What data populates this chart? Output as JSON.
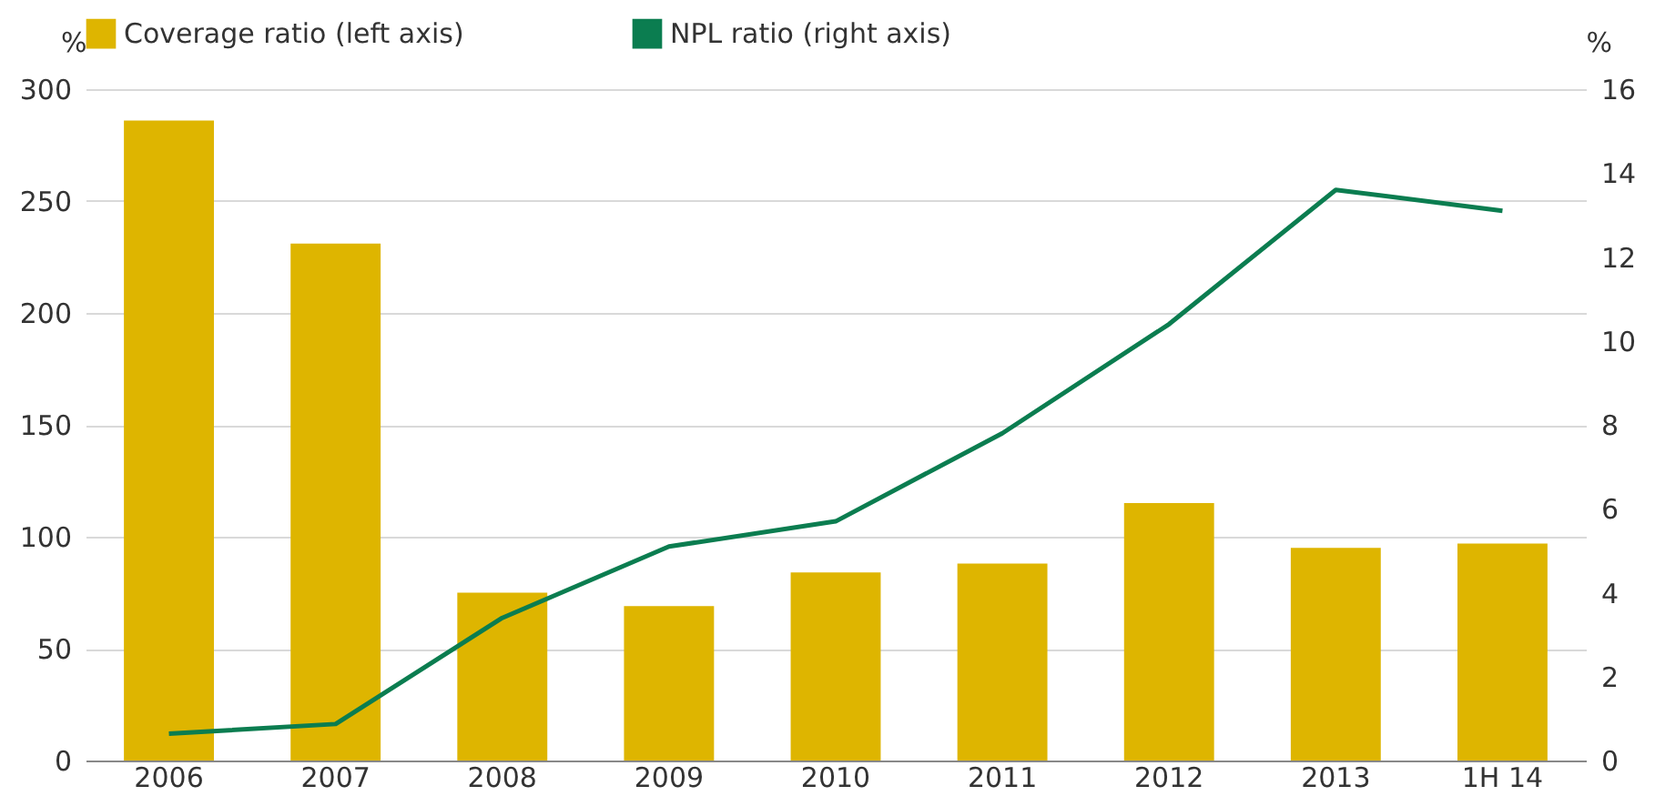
{
  "chart_data": {
    "type": "bar",
    "categories": [
      "2006",
      "2007",
      "2008",
      "2009",
      "2010",
      "2011",
      "2012",
      "2013",
      "1H 14"
    ],
    "series": [
      {
        "name": "Coverage ratio (left axis)",
        "color": "#deb500",
        "values": [
          286,
          231,
          75,
          69,
          84,
          88,
          115,
          95,
          97
        ]
      },
      {
        "name": "NPL ratio (right axis)",
        "type": "line",
        "axis": "y2",
        "color": "#0b7d50",
        "values": [
          0.64,
          0.87,
          3.4,
          5.1,
          5.7,
          7.8,
          10.4,
          13.6,
          13.1
        ]
      }
    ],
    "ylabel": "%",
    "y2label": "%",
    "ylim": [
      0,
      300
    ],
    "yticks": [
      0,
      50,
      100,
      150,
      200,
      250,
      300
    ],
    "y2lim": [
      0,
      16
    ],
    "y2ticks": [
      0,
      2,
      4,
      6,
      8,
      10,
      12,
      14,
      16
    ],
    "grid": "y",
    "legend": "top",
    "marker": "none",
    "line_style": "solid"
  }
}
